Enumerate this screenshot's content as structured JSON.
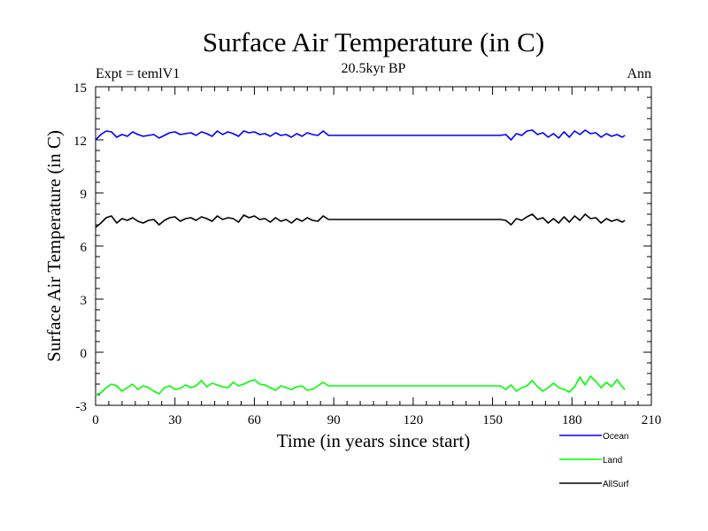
{
  "chart_data": {
    "type": "line",
    "title": "Surface Air Temperature (in C)",
    "subtitle": "20.5kyr BP",
    "left_label": "Expt = temlV1",
    "right_label": "Ann",
    "xlabel": "Time (in years since start)",
    "ylabel": "Surface Air Temperature (in C)",
    "xlim": [
      0,
      210
    ],
    "ylim": [
      -3,
      15
    ],
    "xticks": [
      0,
      30,
      60,
      90,
      120,
      150,
      180,
      210
    ],
    "yticks": [
      -3,
      0,
      3,
      6,
      9,
      12,
      15
    ],
    "grid": false,
    "legend_position": "bottom-right",
    "series": [
      {
        "name": "Ocean",
        "color": "#0000ff",
        "x": [
          0,
          2,
          4,
          6,
          8,
          10,
          12,
          14,
          16,
          18,
          20,
          22,
          24,
          26,
          28,
          30,
          32,
          34,
          36,
          38,
          40,
          42,
          44,
          46,
          48,
          50,
          52,
          54,
          56,
          58,
          60,
          62,
          64,
          66,
          68,
          70,
          72,
          74,
          76,
          78,
          80,
          82,
          84,
          86,
          88,
          153,
          155,
          157,
          159,
          161,
          163,
          165,
          167,
          169,
          171,
          173,
          175,
          177,
          179,
          181,
          183,
          185,
          187,
          189,
          191,
          193,
          195,
          197,
          199,
          200
        ],
        "values": [
          12.0,
          12.3,
          12.5,
          12.45,
          12.15,
          12.3,
          12.2,
          12.45,
          12.3,
          12.2,
          12.25,
          12.3,
          12.1,
          12.25,
          12.4,
          12.45,
          12.3,
          12.35,
          12.4,
          12.25,
          12.45,
          12.35,
          12.2,
          12.5,
          12.3,
          12.45,
          12.35,
          12.2,
          12.5,
          12.4,
          12.45,
          12.3,
          12.35,
          12.2,
          12.4,
          12.25,
          12.3,
          12.15,
          12.35,
          12.2,
          12.4,
          12.3,
          12.25,
          12.5,
          12.25,
          12.25,
          12.3,
          12.0,
          12.35,
          12.25,
          12.5,
          12.55,
          12.3,
          12.4,
          12.15,
          12.35,
          12.1,
          12.45,
          12.15,
          12.5,
          12.3,
          12.55,
          12.35,
          12.4,
          12.15,
          12.35,
          12.2,
          12.3,
          12.15,
          12.25
        ]
      },
      {
        "name": "Land",
        "color": "#00ff00",
        "x": [
          0,
          2,
          4,
          6,
          8,
          10,
          12,
          14,
          16,
          18,
          20,
          22,
          24,
          26,
          28,
          30,
          32,
          34,
          36,
          38,
          40,
          42,
          44,
          46,
          48,
          50,
          52,
          54,
          56,
          58,
          60,
          62,
          64,
          66,
          68,
          70,
          72,
          74,
          76,
          78,
          80,
          82,
          84,
          86,
          88,
          153,
          155,
          157,
          159,
          161,
          163,
          165,
          167,
          169,
          171,
          173,
          175,
          177,
          179,
          181,
          183,
          185,
          187,
          189,
          191,
          193,
          195,
          197,
          199,
          200
        ],
        "values": [
          -2.4,
          -2.3,
          -2.0,
          -1.8,
          -1.9,
          -2.2,
          -2.0,
          -1.8,
          -2.1,
          -1.9,
          -2.0,
          -2.2,
          -2.35,
          -2.0,
          -1.9,
          -2.1,
          -2.05,
          -1.85,
          -2.0,
          -1.9,
          -1.6,
          -1.95,
          -1.75,
          -1.85,
          -1.95,
          -2.0,
          -1.7,
          -1.9,
          -1.8,
          -1.65,
          -1.55,
          -1.8,
          -1.85,
          -2.0,
          -2.15,
          -1.9,
          -2.0,
          -2.1,
          -1.95,
          -1.9,
          -2.15,
          -2.1,
          -1.9,
          -1.7,
          -1.9,
          -1.9,
          -2.1,
          -1.85,
          -2.2,
          -2.0,
          -1.9,
          -1.6,
          -1.95,
          -2.2,
          -2.0,
          -1.75,
          -2.0,
          -2.1,
          -2.25,
          -1.95,
          -1.4,
          -1.85,
          -1.35,
          -1.65,
          -2.0,
          -1.7,
          -1.95,
          -1.55,
          -1.95,
          -2.1
        ]
      },
      {
        "name": "AllSurf",
        "color": "#000000",
        "x": [
          0,
          2,
          4,
          6,
          8,
          10,
          12,
          14,
          16,
          18,
          20,
          22,
          24,
          26,
          28,
          30,
          32,
          34,
          36,
          38,
          40,
          42,
          44,
          46,
          48,
          50,
          52,
          54,
          56,
          58,
          60,
          62,
          64,
          66,
          68,
          70,
          72,
          74,
          76,
          78,
          80,
          82,
          84,
          86,
          88,
          153,
          155,
          157,
          159,
          161,
          163,
          165,
          167,
          169,
          171,
          173,
          175,
          177,
          179,
          181,
          183,
          185,
          187,
          189,
          191,
          193,
          195,
          197,
          199,
          200
        ],
        "values": [
          7.05,
          7.3,
          7.6,
          7.7,
          7.3,
          7.55,
          7.45,
          7.6,
          7.4,
          7.3,
          7.45,
          7.5,
          7.2,
          7.45,
          7.6,
          7.65,
          7.4,
          7.55,
          7.6,
          7.45,
          7.65,
          7.55,
          7.4,
          7.7,
          7.5,
          7.6,
          7.55,
          7.35,
          7.75,
          7.6,
          7.7,
          7.5,
          7.55,
          7.35,
          7.6,
          7.4,
          7.5,
          7.3,
          7.55,
          7.4,
          7.6,
          7.45,
          7.4,
          7.7,
          7.5,
          7.5,
          7.45,
          7.2,
          7.55,
          7.45,
          7.65,
          7.8,
          7.5,
          7.6,
          7.3,
          7.55,
          7.3,
          7.65,
          7.35,
          7.7,
          7.45,
          7.8,
          7.55,
          7.6,
          7.3,
          7.55,
          7.4,
          7.5,
          7.35,
          7.45
        ]
      }
    ]
  }
}
